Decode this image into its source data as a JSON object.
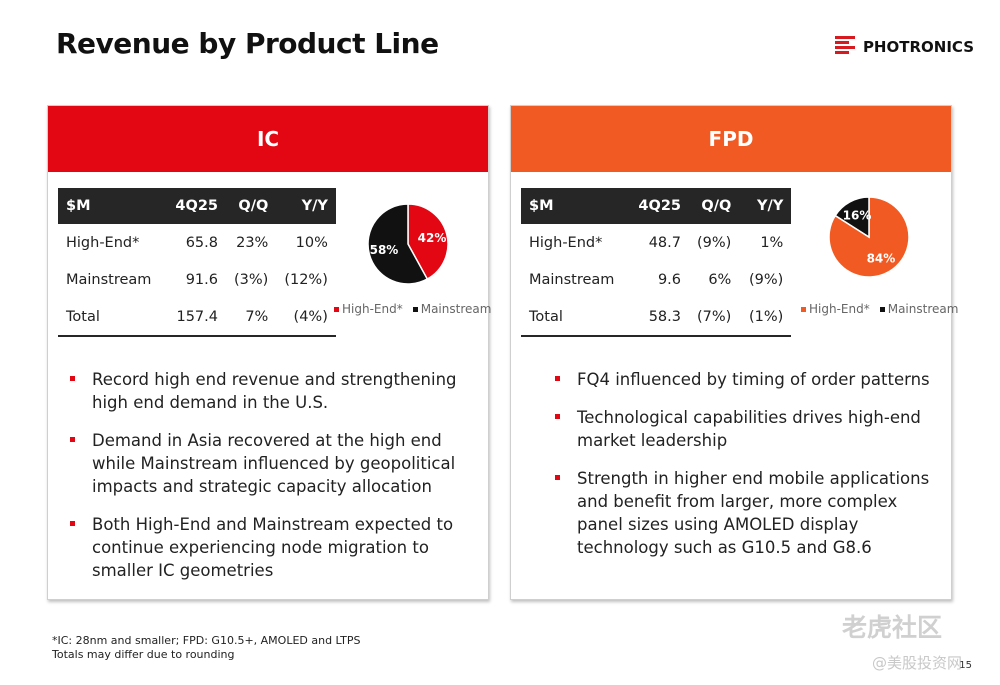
{
  "title": "Revenue by Product Line",
  "logo": {
    "text": "PHOTRONICS",
    "color": "#d71920"
  },
  "ic": {
    "header": "IC",
    "color": "#e30613",
    "table": {
      "headers": [
        "$M",
        "4Q25",
        "Q/Q",
        "Y/Y"
      ],
      "rows": [
        [
          "High-End*",
          "65.8",
          "23%",
          "10%"
        ],
        [
          "Mainstream",
          "91.6",
          "(3%)",
          "(12%)"
        ],
        [
          "Total",
          "157.4",
          "7%",
          "(4%)"
        ]
      ]
    },
    "chart_data": {
      "type": "pie",
      "categories": [
        "High-End*",
        "Mainstream"
      ],
      "values": [
        42,
        58
      ],
      "labels": [
        "42%",
        "58%"
      ],
      "colors": [
        "#e30613",
        "#111111"
      ],
      "legend_position": "bottom"
    },
    "bullets": [
      "Record high end revenue and strengthening high end demand in the U.S.",
      "Demand in Asia recovered at the high end while Mainstream influenced by geopolitical impacts and strategic capacity allocation",
      "Both High-End and Mainstream expected to continue experiencing node migration to smaller IC geometries"
    ]
  },
  "fpd": {
    "header": "FPD",
    "color": "#f15a22",
    "table": {
      "headers": [
        "$M",
        "4Q25",
        "Q/Q",
        "Y/Y"
      ],
      "rows": [
        [
          "High-End*",
          "48.7",
          "(9%)",
          "1%"
        ],
        [
          "Mainstream",
          "9.6",
          "6%",
          "(9%)"
        ],
        [
          "Total",
          "58.3",
          "(7%)",
          "(1%)"
        ]
      ]
    },
    "chart_data": {
      "type": "pie",
      "categories": [
        "High-End*",
        "Mainstream"
      ],
      "values": [
        84,
        16
      ],
      "labels": [
        "84%",
        "16%"
      ],
      "colors": [
        "#f15a22",
        "#111111"
      ],
      "legend_position": "bottom"
    },
    "bullets": [
      "FQ4 influenced by timing of order patterns",
      "Technological capabilities drives high-end market leadership",
      "Strength in higher end mobile applications and benefit from larger, more complex panel sizes using AMOLED display technology such as G10.5 and G8.6"
    ]
  },
  "footnote": {
    "line1": "*IC: 28nm and smaller; FPD: G10.5+, AMOLED and LTPS",
    "line2": "Totals may differ due to rounding"
  },
  "page_number": "15",
  "watermark": {
    "main": "老虎社区",
    "sub": "@美股投资网"
  }
}
